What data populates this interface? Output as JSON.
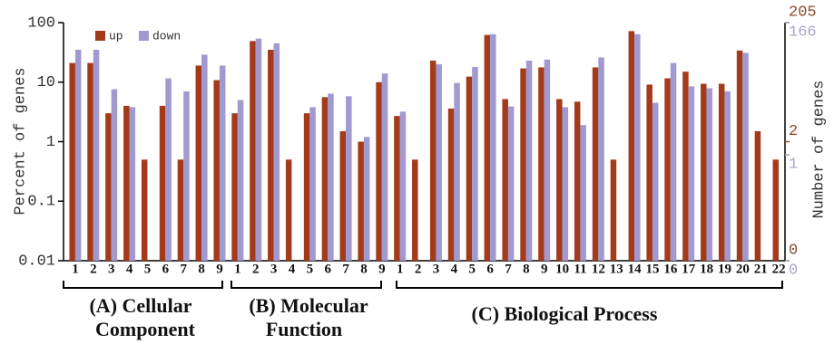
{
  "chart_data": {
    "type": "bar",
    "log_scale": true,
    "ylabel": "Percent of genes",
    "y2label": "Number of genes",
    "ylim": [
      0.01,
      100
    ],
    "yticks": [
      0.01,
      0.1,
      1,
      10,
      100
    ],
    "categories": [
      "1",
      "2",
      "3",
      "4",
      "5",
      "6",
      "7",
      "8",
      "9",
      "1",
      "2",
      "3",
      "4",
      "5",
      "6",
      "7",
      "8",
      "9",
      "1",
      "2",
      "3",
      "4",
      "5",
      "6",
      "7",
      "8",
      "9",
      "10",
      "11",
      "12",
      "13",
      "14",
      "15",
      "16",
      "17",
      "18",
      "19",
      "20",
      "21",
      "22"
    ],
    "series": [
      {
        "name": "up",
        "color": "#a33a1a",
        "values": [
          21,
          21,
          3,
          4,
          0.5,
          4,
          0.5,
          19,
          10.8,
          3,
          49,
          35,
          0.5,
          3,
          5.6,
          1.5,
          1,
          10,
          2.7,
          0.5,
          23,
          3.6,
          12.4,
          62,
          5.2,
          17,
          17.7,
          5.2,
          4.7,
          17.7,
          0.5,
          72,
          9.1,
          11.6,
          15,
          9.4,
          9.4,
          34,
          1.5,
          0.5
        ],
        "y2ticks": [
          {
            "value": 100,
            "label": "205"
          },
          {
            "value": 1,
            "label": "2"
          },
          {
            "value": 0.01,
            "label": "0"
          }
        ],
        "tick_color": "#8b4a2a"
      },
      {
        "name": "down",
        "color": "#a09ad0",
        "values": [
          35,
          35,
          7.6,
          3.8,
          null,
          11.6,
          7,
          29,
          19,
          5,
          54,
          45,
          null,
          3.8,
          6.4,
          5.8,
          1.2,
          14,
          3.2,
          null,
          20,
          9.7,
          18,
          64,
          3.9,
          23,
          24,
          3.8,
          1.9,
          26,
          null,
          64,
          4.5,
          21,
          8.5,
          7.9,
          7,
          31,
          null,
          null
        ],
        "y2ticks": [
          {
            "value": 100,
            "label": "166"
          },
          {
            "value": 0.6,
            "label": "1"
          },
          {
            "value": 0.01,
            "label": "0"
          }
        ],
        "tick_color": "#aaa4c8"
      }
    ],
    "legend": "upper left",
    "groups": [
      {
        "lines": [
          "(A) Cellular",
          "Component"
        ]
      },
      {
        "lines": [
          "(B) Molecular",
          "Function"
        ]
      },
      {
        "lines": [
          "(C) Biological Process"
        ]
      }
    ]
  }
}
